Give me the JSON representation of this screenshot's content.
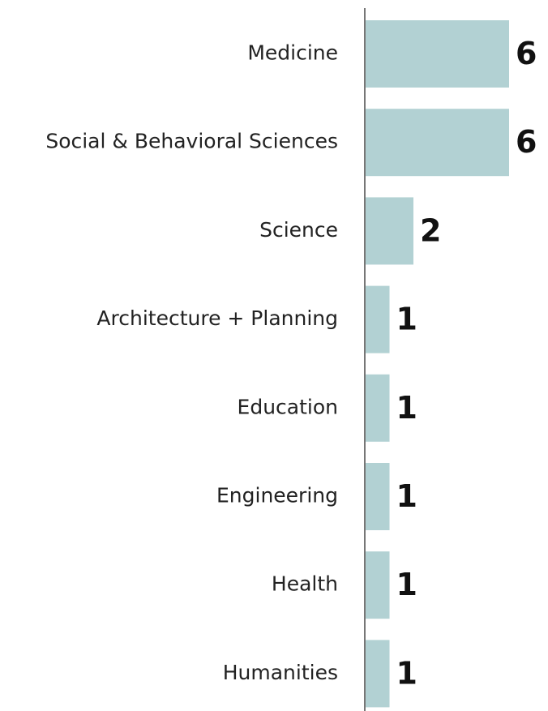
{
  "chart_data": {
    "type": "hbar",
    "categories": [
      "Medicine",
      "Social & Behavioral Sciences",
      "Science",
      "Architecture + Planning",
      "Education",
      "Engineering",
      "Health",
      "Humanities"
    ],
    "values": [
      6,
      6,
      2,
      1,
      1,
      1,
      1,
      1
    ],
    "color": "#b2d1d3",
    "xlim": [
      0,
      6
    ]
  }
}
